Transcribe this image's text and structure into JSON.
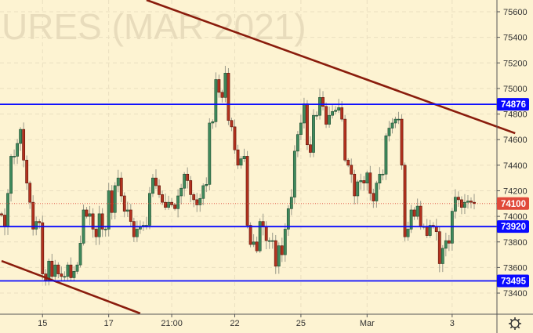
{
  "watermark": "URES (MAR 2021)",
  "chart_data": {
    "type": "candlestick",
    "y_ticks": [
      75600,
      75400,
      75200,
      75000,
      74800,
      74600,
      74400,
      74200,
      74000,
      73800,
      73600,
      73400
    ],
    "ylim": [
      73230,
      75690
    ],
    "x_ticks": [
      {
        "label": "15",
        "index": 13
      },
      {
        "label": "17",
        "index": 34
      },
      {
        "label": "21:00",
        "index": 54
      },
      {
        "label": "22",
        "index": 74
      },
      {
        "label": "25",
        "index": 95
      },
      {
        "label": "Mar",
        "index": 116
      },
      {
        "label": "3",
        "index": 143
      }
    ],
    "grid": true,
    "closes": [
      74010,
      73920,
      74180,
      74470,
      74470,
      74570,
      74680,
      74440,
      74260,
      74110,
      73900,
      73960,
      73950,
      73550,
      73500,
      73650,
      73530,
      73620,
      73550,
      73530,
      73530,
      73620,
      73520,
      73570,
      73620,
      73790,
      74050,
      74000,
      74020,
      73900,
      73840,
      74020,
      73900,
      73900,
      74200,
      74030,
      74240,
      74300,
      74160,
      74040,
      74050,
      73960,
      73840,
      73900,
      73920,
      73930,
      73930,
      74180,
      74300,
      74240,
      74170,
      74110,
      74070,
      74110,
      74090,
      74060,
      74160,
      74220,
      74330,
      74280,
      74170,
      74130,
      74090,
      74140,
      74240,
      74250,
      74730,
      74740,
      75070,
      74970,
      74930,
      75120,
      74750,
      74700,
      74520,
      74400,
      74450,
      74470,
      73930,
      73780,
      73800,
      73730,
      73960,
      73920,
      73810,
      73810,
      73810,
      73610,
      73770,
      73700,
      73900,
      74060,
      74150,
      74510,
      74640,
      74730,
      74880,
      74560,
      74500,
      74790,
      74790,
      74930,
      74860,
      74720,
      74790,
      74820,
      74830,
      74850,
      74760,
      74440,
      74400,
      74330,
      74160,
      74270,
      74280,
      74260,
      74340,
      74180,
      74120,
      74260,
      74330,
      74330,
      74630,
      74690,
      74730,
      74760,
      74760,
      74400,
      73840,
      73900,
      74050,
      74000,
      74080,
      73920,
      73920,
      73850,
      73930,
      73920,
      73880,
      73630,
      73750,
      73810,
      73790,
      74040,
      74150,
      74130,
      74070,
      74110,
      74120,
      74110,
      74100
    ],
    "horizontal_levels": [
      {
        "price": 74876,
        "label": "74876",
        "color": "#0a0aff"
      },
      {
        "price": 73920,
        "label": "73920",
        "color": "#0a0aff"
      },
      {
        "price": 73495,
        "label": "73495",
        "color": "#0a0aff"
      }
    ],
    "last_price": {
      "price": 74100,
      "label": "74100",
      "color": "#e0493a"
    },
    "trend_lines": [
      {
        "from": {
          "index": 46,
          "price": 75692
        },
        "to": {
          "index": 163,
          "price": 74650
        },
        "color": "#8a1c0c"
      },
      {
        "from": {
          "index": 0,
          "price": 73651
        },
        "to": {
          "index": 44,
          "price": 73241
        },
        "color": "#8a1c0c"
      }
    ],
    "colors": {
      "up": "#3f8a5c",
      "down": "#b3321f",
      "background": "#fdf3d2"
    }
  },
  "settings_icon": "gear-icon"
}
